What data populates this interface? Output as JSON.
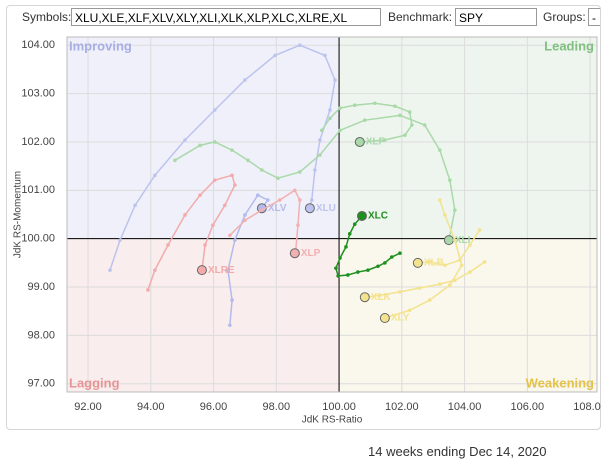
{
  "controls": {
    "symbols_label": "Symbols:",
    "symbols": "XLU,XLE,XLF,XLV,XLY,XLI,XLK,XLP,XLC,XLRE,XL",
    "benchmark_label": "Benchmark:",
    "benchmark": "SPY",
    "groups_label": "Groups:",
    "groups": "-"
  },
  "footer": "14 weeks ending Dec 14, 2020",
  "chart_data": {
    "type": "line",
    "x_label": "JdK RS-Ratio",
    "y_label": "JdK RS-Momentum",
    "xlim": [
      91.33,
      108.22
    ],
    "ylim": [
      96.83,
      104.17
    ],
    "xticks": [
      {
        "value": 92,
        "label": "92.00"
      },
      {
        "value": 94,
        "label": "94.00"
      },
      {
        "value": 96,
        "label": "96.00"
      },
      {
        "value": 98,
        "label": "98.00"
      },
      {
        "value": 100,
        "label": "100.00"
      },
      {
        "value": 102,
        "label": "102.00"
      },
      {
        "value": 104,
        "label": "104.00"
      },
      {
        "value": 106,
        "label": "106.00"
      },
      {
        "value": 108,
        "label": "108.00"
      }
    ],
    "yticks": [
      {
        "value": 97,
        "label": "97.00"
      },
      {
        "value": 98,
        "label": "98.00"
      },
      {
        "value": 99,
        "label": "99.00"
      },
      {
        "value": 100,
        "label": "100.00"
      },
      {
        "value": 101,
        "label": "101.00"
      },
      {
        "value": 102,
        "label": "102.00"
      },
      {
        "value": 103,
        "label": "103.00"
      },
      {
        "value": 104,
        "label": "104.00"
      }
    ],
    "grid": true,
    "center": {
      "x": 100,
      "y": 100
    },
    "quadrants": [
      {
        "label": "Improving",
        "color": "#f0f0fa",
        "text_color": "#a7aee3"
      },
      {
        "label": "Leading",
        "color": "#eef5ee",
        "text_color": "#80c080"
      },
      {
        "label": "Lagging",
        "color": "#f9eded",
        "text_color": "#e69595"
      },
      {
        "label": "Weakening",
        "color": "#faf7ec",
        "text_color": "#e3c24a"
      }
    ],
    "series": [
      {
        "name": "XLU",
        "color": "#bcc3ee",
        "x": [
          92.7,
          93.02,
          93.5,
          94.13,
          95.09,
          96.04,
          97.0,
          97.96,
          98.75,
          99.55,
          99.87,
          99.71,
          99.39,
          99.23,
          99.13,
          99.07
        ],
        "values": [
          99.35,
          99.97,
          100.69,
          101.31,
          102.04,
          102.66,
          103.28,
          103.79,
          104.0,
          103.79,
          103.28,
          102.66,
          102.04,
          101.42,
          100.8,
          100.63
        ]
      },
      {
        "name": "XLV",
        "color": "#b3bbec",
        "x": [
          96.52,
          96.59,
          96.46,
          96.68,
          97.0,
          97.41,
          97.73,
          97.54
        ],
        "values": [
          98.21,
          98.73,
          99.35,
          99.97,
          100.49,
          100.9,
          100.8,
          100.63
        ]
      },
      {
        "name": "XLRE",
        "color": "#f2aaaa",
        "x": [
          93.91,
          94.13,
          94.55,
          95.09,
          95.57,
          96.04,
          96.59,
          96.68,
          96.36,
          95.98,
          95.73,
          95.63
        ],
        "values": [
          98.94,
          99.35,
          99.87,
          100.49,
          100.9,
          101.21,
          101.31,
          101.11,
          100.69,
          100.28,
          99.87,
          99.35
        ]
      },
      {
        "name": "XLP",
        "color": "#f2b0b0",
        "x": [
          96.52,
          97.0,
          97.54,
          98.11,
          98.59,
          98.75,
          98.69,
          98.62,
          98.59
        ],
        "values": [
          100.07,
          100.38,
          100.59,
          100.8,
          101.0,
          100.8,
          100.28,
          99.76,
          99.7
        ]
      },
      {
        "name": "XLI",
        "color": "#a9d9a9",
        "x": [
          94.77,
          95.57,
          96.04,
          96.59,
          97.1,
          97.54,
          98.05,
          98.75,
          99.39,
          100.03,
          100.82,
          101.94,
          102.73,
          103.21,
          103.53,
          103.69,
          103.5
        ],
        "values": [
          101.62,
          101.93,
          102.0,
          101.83,
          101.62,
          101.42,
          101.25,
          101.38,
          101.73,
          102.24,
          102.45,
          102.55,
          102.35,
          101.83,
          101.21,
          100.59,
          99.97
        ]
      },
      {
        "name": "XLF",
        "color": "#a9d9a9",
        "x": [
          99.45,
          99.71,
          100.03,
          100.5,
          101.14,
          101.78,
          102.25,
          102.32,
          102.1,
          101.46,
          100.66
        ],
        "values": [
          102.24,
          102.49,
          102.7,
          102.76,
          102.8,
          102.74,
          102.62,
          102.35,
          102.14,
          102.04,
          102.0
        ]
      },
      {
        "name": "XLB",
        "color": "#f3e38f",
        "x": [
          104.48,
          104.17,
          103.85,
          103.37,
          102.89,
          102.51
        ],
        "values": [
          100.18,
          99.87,
          99.56,
          99.45,
          99.52,
          99.5
        ]
      },
      {
        "name": "XLK",
        "color": "#f3e38f",
        "x": [
          104.64,
          104.17,
          103.69,
          103.21,
          102.57,
          101.94,
          101.3,
          100.82
        ],
        "values": [
          99.52,
          99.31,
          99.14,
          99.06,
          98.98,
          98.9,
          98.83,
          98.79
        ]
      },
      {
        "name": "XLY",
        "color": "#f3e38f",
        "x": [
          103.21,
          103.37,
          103.69,
          103.91,
          103.53,
          102.89,
          102.25,
          101.46
        ],
        "values": [
          100.8,
          100.49,
          99.97,
          99.45,
          99.04,
          98.73,
          98.52,
          98.36
        ]
      },
      {
        "name": "XLC",
        "color": "#1f8f1f",
        "x": [
          101.94,
          101.68,
          101.46,
          101.24,
          100.92,
          100.6,
          100.28,
          99.97,
          99.9,
          100.03,
          100.22,
          100.34,
          100.5,
          100.73
        ],
        "values": [
          99.7,
          99.62,
          99.5,
          99.43,
          99.35,
          99.31,
          99.25,
          99.23,
          99.39,
          99.6,
          99.83,
          100.1,
          100.3,
          100.47
        ]
      }
    ]
  }
}
